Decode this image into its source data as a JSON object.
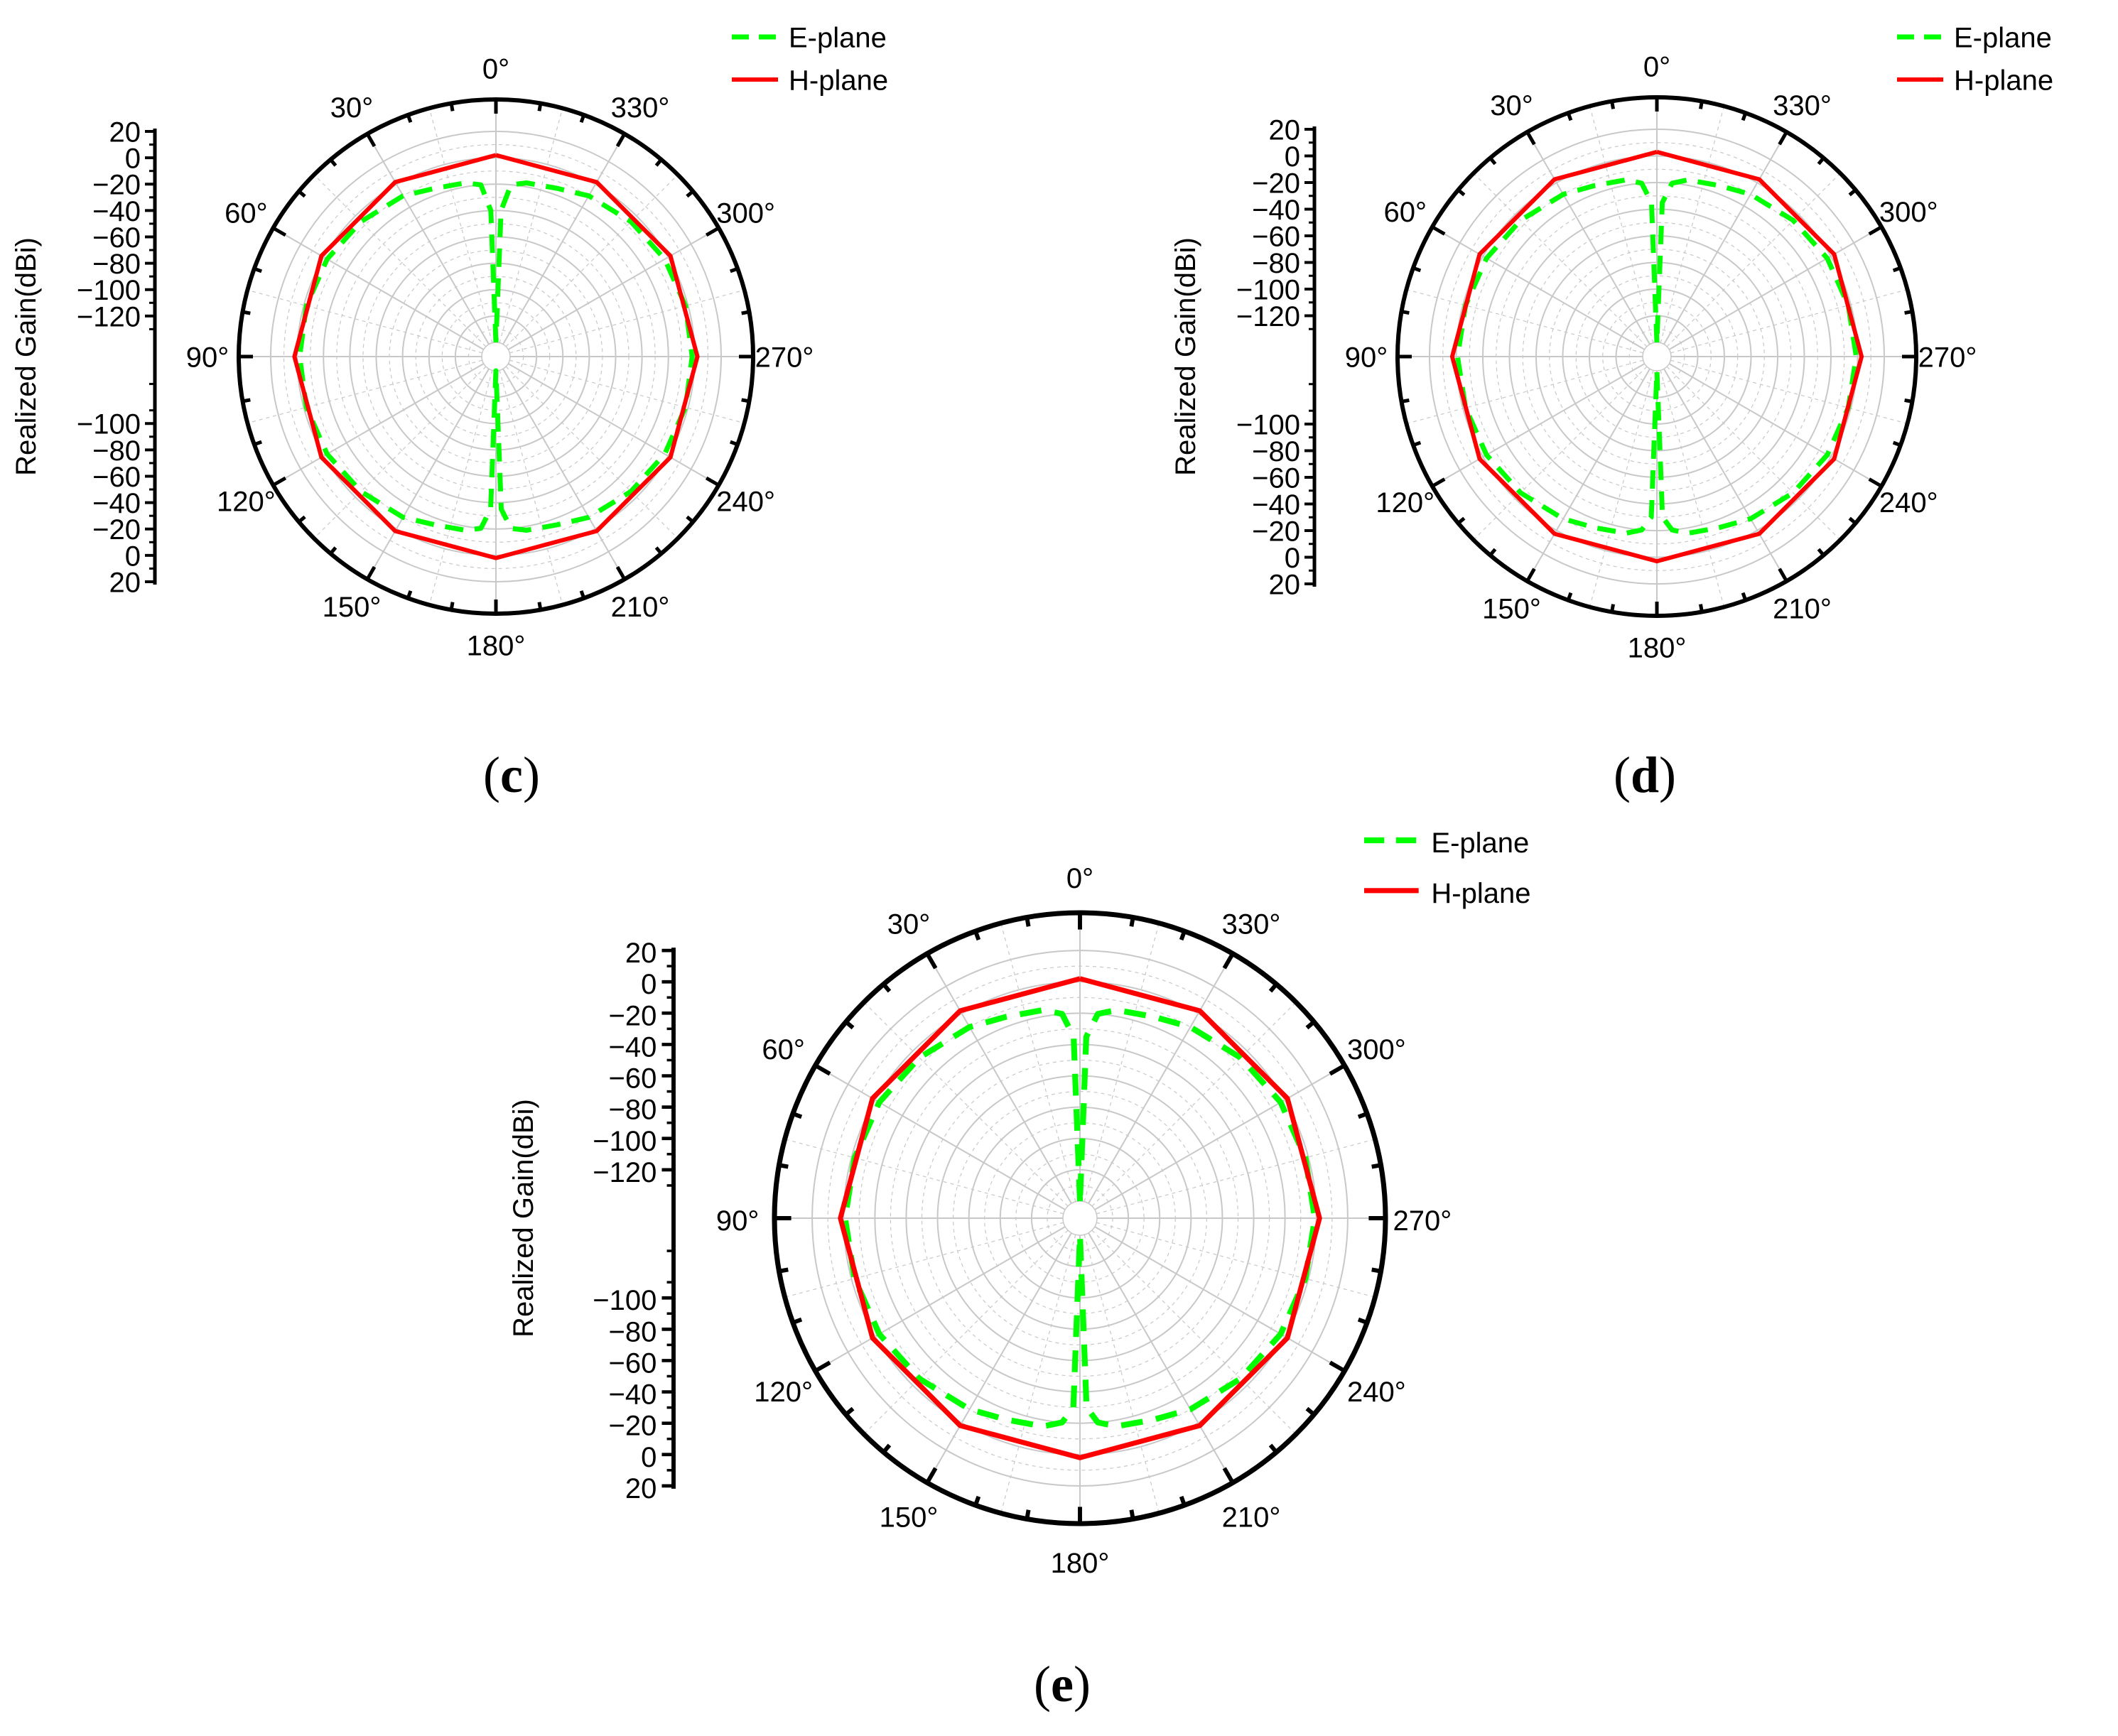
{
  "colors": {
    "e_plane": "#00ff00",
    "h_plane": "#ff0000",
    "axis": "#000000",
    "grid": "#c8c8c8"
  },
  "chart_data": [
    {
      "type": "polar",
      "panel_label": "c",
      "ylabel": "Realized Gain(dBi)",
      "radial_range": [
        -140,
        20
      ],
      "radial_ticks": [
        "20",
        "0",
        "-20",
        "-40",
        "-60",
        "-80",
        "-100",
        "-120"
      ],
      "angle_ticks": [
        "0°",
        "30°",
        "60°",
        "90°",
        "120°",
        "150°",
        "180°",
        "210°",
        "240°",
        "270°",
        "300°",
        "330°"
      ],
      "legend_position": "top-right",
      "series": [
        {
          "name": "E-plane",
          "style": "dashed",
          "angles": [
            0,
            2,
            5,
            10,
            20,
            30,
            45,
            60,
            75,
            90,
            105,
            120,
            135,
            150,
            160,
            170,
            175,
            178,
            180,
            182,
            185,
            190,
            200,
            210,
            225,
            240,
            255,
            270,
            285,
            300,
            315,
            330,
            340,
            350,
            355,
            358,
            360
          ],
          "gain": [
            -140,
            -40,
            -20,
            -17,
            -15,
            -10,
            -6,
            -3,
            -2,
            -2,
            -2,
            -3,
            -6,
            -10,
            -15,
            -17,
            -20,
            -35,
            -140,
            -35,
            -20,
            -17,
            -15,
            -10,
            -6,
            -3,
            -2,
            -2,
            -2,
            -3,
            -6,
            -10,
            -15,
            -17,
            -20,
            -40,
            -140
          ]
        },
        {
          "name": "H-plane",
          "style": "solid",
          "angles": [
            0,
            30,
            60,
            90,
            120,
            150,
            180,
            210,
            240,
            270,
            300,
            330,
            360
          ],
          "gain": [
            2,
            2,
            2,
            2,
            2,
            2,
            2,
            2,
            2,
            2,
            2,
            2,
            2
          ]
        }
      ]
    },
    {
      "type": "polar",
      "panel_label": "d",
      "ylabel": "Realized Gain(dBi)",
      "radial_range": [
        -140,
        20
      ],
      "radial_ticks": [
        "20",
        "0",
        "-20",
        "-40",
        "-60",
        "-80",
        "-100",
        "-120"
      ],
      "angle_ticks": [
        "0°",
        "30°",
        "60°",
        "90°",
        "120°",
        "150°",
        "180°",
        "210°",
        "240°",
        "270°",
        "300°",
        "330°"
      ],
      "legend_position": "top-right",
      "series": [
        {
          "name": "E-plane",
          "style": "dashed",
          "angles": [
            0,
            2,
            5,
            10,
            20,
            30,
            45,
            60,
            75,
            90,
            105,
            120,
            135,
            150,
            160,
            170,
            175,
            178,
            180,
            182,
            185,
            190,
            200,
            210,
            225,
            240,
            255,
            270,
            285,
            300,
            315,
            330,
            340,
            350,
            355,
            358,
            360
          ],
          "gain": [
            -140,
            -35,
            -20,
            -16,
            -14,
            -10,
            -6,
            -3,
            -2,
            -1,
            -2,
            -3,
            -6,
            -10,
            -14,
            -16,
            -20,
            -30,
            -140,
            -30,
            -20,
            -16,
            -14,
            -10,
            -6,
            -3,
            -2,
            -1,
            -2,
            -3,
            -6,
            -10,
            -14,
            -16,
            -20,
            -35,
            -140
          ]
        },
        {
          "name": "H-plane",
          "style": "solid",
          "angles": [
            0,
            30,
            60,
            90,
            120,
            150,
            180,
            210,
            240,
            270,
            300,
            330,
            360
          ],
          "gain": [
            3,
            3,
            3,
            3,
            3,
            3,
            3,
            3,
            3,
            3,
            3,
            3,
            3
          ]
        }
      ]
    },
    {
      "type": "polar",
      "panel_label": "e",
      "ylabel": "Realized Gain(dBi)",
      "radial_range": [
        -140,
        20
      ],
      "radial_ticks": [
        "20",
        "0",
        "-20",
        "-40",
        "-60",
        "-80",
        "-100",
        "-120"
      ],
      "angle_ticks": [
        "0°",
        "30°",
        "60°",
        "90°",
        "120°",
        "150°",
        "180°",
        "210°",
        "240°",
        "270°",
        "300°",
        "330°"
      ],
      "legend_position": "top-right",
      "series": [
        {
          "name": "E-plane",
          "style": "dashed",
          "angles": [
            0,
            2,
            5,
            10,
            20,
            30,
            45,
            60,
            75,
            90,
            105,
            120,
            135,
            150,
            160,
            170,
            175,
            178,
            180,
            182,
            185,
            190,
            200,
            210,
            225,
            240,
            255,
            270,
            285,
            300,
            315,
            330,
            340,
            350,
            355,
            358,
            360
          ],
          "gain": [
            -140,
            -35,
            -20,
            -16,
            -14,
            -10,
            -6,
            -3,
            -2,
            -1,
            -2,
            -3,
            -6,
            -10,
            -14,
            -16,
            -20,
            -30,
            -140,
            -30,
            -20,
            -16,
            -14,
            -10,
            -6,
            -3,
            -2,
            -1,
            -2,
            -3,
            -6,
            -10,
            -14,
            -16,
            -20,
            -35,
            -140
          ]
        },
        {
          "name": "H-plane",
          "style": "solid",
          "angles": [
            0,
            30,
            60,
            90,
            120,
            150,
            180,
            210,
            240,
            270,
            300,
            330,
            360
          ],
          "gain": [
            2,
            2,
            2,
            2,
            2,
            2,
            2,
            2,
            2,
            2,
            2,
            2,
            2
          ]
        }
      ]
    }
  ]
}
